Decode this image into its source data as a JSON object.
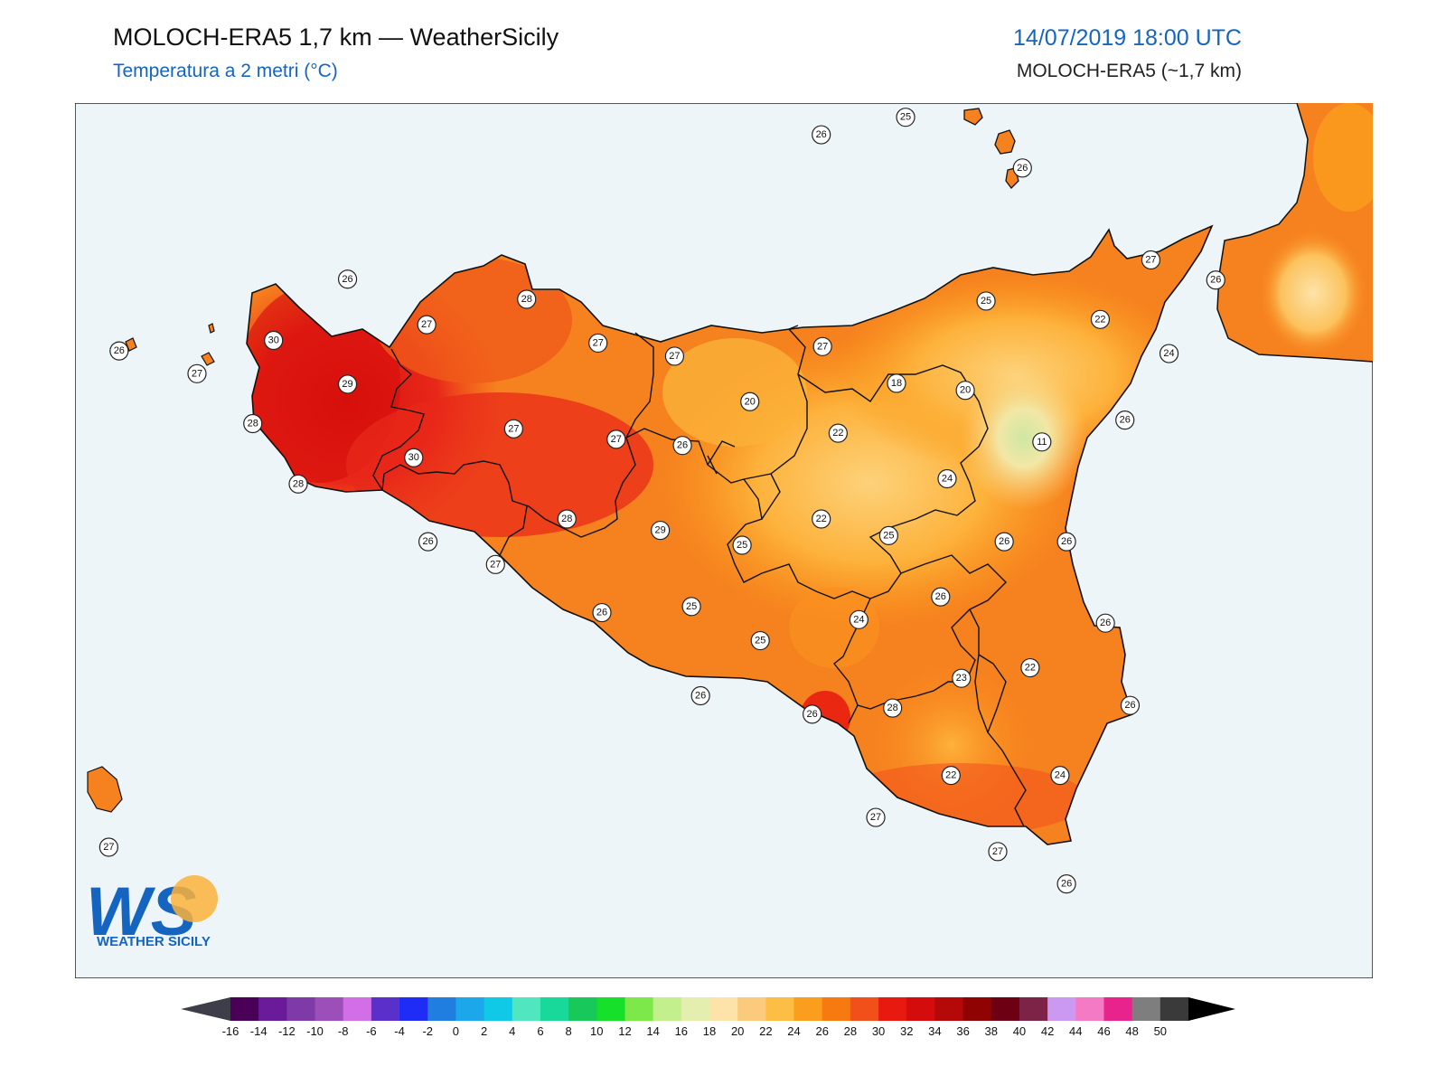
{
  "header": {
    "title": "MOLOCH-ERA5 1,7 km — WeatherSicily",
    "subtitle": "Temperatura a 2 metri (°C)",
    "datetime": "14/07/2019 18:00 UTC",
    "model": "MOLOCH-ERA5 (~1,7 km)"
  },
  "logo": {
    "mark": "WS",
    "text": "WEATHER SICILY"
  },
  "map_labels": [
    {
      "id": "l01",
      "value": "26",
      "lon": 0.575,
      "lat": 0.03
    },
    {
      "id": "l02",
      "value": "25",
      "lon": 0.64,
      "lat": 0.01
    },
    {
      "id": "l03",
      "value": "26",
      "lon": 0.73,
      "lat": 0.068
    },
    {
      "id": "l04",
      "value": "26",
      "lon": 0.21,
      "lat": 0.195
    },
    {
      "id": "l05",
      "value": "28",
      "lon": 0.348,
      "lat": 0.218
    },
    {
      "id": "l06",
      "value": "27",
      "lon": 0.271,
      "lat": 0.247
    },
    {
      "id": "l07",
      "value": "30",
      "lon": 0.153,
      "lat": 0.265
    },
    {
      "id": "l08",
      "value": "26",
      "lon": 0.034,
      "lat": 0.277
    },
    {
      "id": "l09",
      "value": "27",
      "lon": 0.094,
      "lat": 0.303
    },
    {
      "id": "l10",
      "value": "27",
      "lon": 0.403,
      "lat": 0.268
    },
    {
      "id": "l11",
      "value": "27",
      "lon": 0.462,
      "lat": 0.283
    },
    {
      "id": "l12",
      "value": "27",
      "lon": 0.576,
      "lat": 0.272
    },
    {
      "id": "l13",
      "value": "27",
      "lon": 0.829,
      "lat": 0.173
    },
    {
      "id": "l14",
      "value": "26",
      "lon": 0.879,
      "lat": 0.196
    },
    {
      "id": "l15",
      "value": "25",
      "lon": 0.702,
      "lat": 0.22
    },
    {
      "id": "l16",
      "value": "22",
      "lon": 0.79,
      "lat": 0.241
    },
    {
      "id": "l17",
      "value": "24",
      "lon": 0.843,
      "lat": 0.28
    },
    {
      "id": "l18",
      "value": "29",
      "lon": 0.21,
      "lat": 0.315
    },
    {
      "id": "l19",
      "value": "18",
      "lon": 0.633,
      "lat": 0.314
    },
    {
      "id": "l20",
      "value": "20",
      "lon": 0.686,
      "lat": 0.322
    },
    {
      "id": "l21",
      "value": "20",
      "lon": 0.52,
      "lat": 0.335
    },
    {
      "id": "l22",
      "value": "28",
      "lon": 0.137,
      "lat": 0.36
    },
    {
      "id": "l23",
      "value": "27",
      "lon": 0.338,
      "lat": 0.366
    },
    {
      "id": "l24",
      "value": "27",
      "lon": 0.417,
      "lat": 0.378
    },
    {
      "id": "l25",
      "value": "26",
      "lon": 0.468,
      "lat": 0.385
    },
    {
      "id": "l26",
      "value": "22",
      "lon": 0.588,
      "lat": 0.371
    },
    {
      "id": "l27",
      "value": "26",
      "lon": 0.809,
      "lat": 0.356
    },
    {
      "id": "l28",
      "value": "11",
      "lon": 0.745,
      "lat": 0.381
    },
    {
      "id": "l29",
      "value": "30",
      "lon": 0.261,
      "lat": 0.399
    },
    {
      "id": "l30",
      "value": "28",
      "lon": 0.172,
      "lat": 0.429
    },
    {
      "id": "l31",
      "value": "24",
      "lon": 0.672,
      "lat": 0.423
    },
    {
      "id": "l32",
      "value": "28",
      "lon": 0.379,
      "lat": 0.469
    },
    {
      "id": "l33",
      "value": "29",
      "lon": 0.451,
      "lat": 0.482
    },
    {
      "id": "l34",
      "value": "22",
      "lon": 0.575,
      "lat": 0.469
    },
    {
      "id": "l35",
      "value": "25",
      "lon": 0.627,
      "lat": 0.488
    },
    {
      "id": "l36",
      "value": "26",
      "lon": 0.272,
      "lat": 0.495
    },
    {
      "id": "l37",
      "value": "25",
      "lon": 0.514,
      "lat": 0.499
    },
    {
      "id": "l38",
      "value": "26",
      "lon": 0.716,
      "lat": 0.495
    },
    {
      "id": "l39",
      "value": "26",
      "lon": 0.764,
      "lat": 0.495
    },
    {
      "id": "l40",
      "value": "27",
      "lon": 0.324,
      "lat": 0.521
    },
    {
      "id": "l41",
      "value": "26",
      "lon": 0.667,
      "lat": 0.558
    },
    {
      "id": "l42",
      "value": "25",
      "lon": 0.475,
      "lat": 0.569
    },
    {
      "id": "l43",
      "value": "26",
      "lon": 0.406,
      "lat": 0.576
    },
    {
      "id": "l44",
      "value": "24",
      "lon": 0.604,
      "lat": 0.584
    },
    {
      "id": "l45",
      "value": "26",
      "lon": 0.794,
      "lat": 0.588
    },
    {
      "id": "l46",
      "value": "25",
      "lon": 0.528,
      "lat": 0.608
    },
    {
      "id": "l47",
      "value": "22",
      "lon": 0.736,
      "lat": 0.639
    },
    {
      "id": "l48",
      "value": "23",
      "lon": 0.683,
      "lat": 0.651
    },
    {
      "id": "l49",
      "value": "26",
      "lon": 0.482,
      "lat": 0.671
    },
    {
      "id": "l50",
      "value": "28",
      "lon": 0.63,
      "lat": 0.685
    },
    {
      "id": "l51",
      "value": "26",
      "lon": 0.568,
      "lat": 0.692
    },
    {
      "id": "l52",
      "value": "26",
      "lon": 0.813,
      "lat": 0.682
    },
    {
      "id": "l53",
      "value": "22",
      "lon": 0.675,
      "lat": 0.762
    },
    {
      "id": "l54",
      "value": "24",
      "lon": 0.759,
      "lat": 0.762
    },
    {
      "id": "l55",
      "value": "27",
      "lon": 0.617,
      "lat": 0.81
    },
    {
      "id": "l56",
      "value": "27",
      "lon": 0.026,
      "lat": 0.844
    },
    {
      "id": "l57",
      "value": "27",
      "lon": 0.711,
      "lat": 0.849
    },
    {
      "id": "l58",
      "value": "26",
      "lon": 0.764,
      "lat": 0.886
    }
  ],
  "colorbar": {
    "ticks": [
      "-16",
      "-14",
      "-12",
      "-10",
      "-8",
      "-6",
      "-4",
      "-2",
      "0",
      "2",
      "4",
      "6",
      "8",
      "10",
      "12",
      "14",
      "16",
      "18",
      "20",
      "22",
      "24",
      "26",
      "28",
      "30",
      "32",
      "34",
      "36",
      "38",
      "40",
      "42",
      "44",
      "46",
      "48",
      "50"
    ],
    "colors": [
      "#4a0057",
      "#6a1b9a",
      "#7e3aa6",
      "#9c4fb8",
      "#d36fe6",
      "#5b2fc9",
      "#1e2cf5",
      "#1f7ee0",
      "#1ca7ea",
      "#10c9e6",
      "#4fe6c0",
      "#18d89a",
      "#18c85a",
      "#16e02a",
      "#7de84a",
      "#c3ef8c",
      "#e4eeae",
      "#fde3a9",
      "#fcca7c",
      "#fdbe45",
      "#fb9d1d",
      "#f77a11",
      "#f2501b",
      "#e8190f",
      "#d40c0c",
      "#b50808",
      "#8f0303",
      "#6e0014",
      "#7e2348",
      "#cc99f2",
      "#f57ac6",
      "#e8238c",
      "#7e7e7e",
      "#3a3a3a"
    ],
    "under_color": "#3e3e4a",
    "over_color": "#000000"
  },
  "colors": {
    "sea": "#eef5f9",
    "land_base": "#f6821f",
    "west_hot": "#e2241a",
    "east_warm": "#fcb53a",
    "etna_cool": "#e8e89c",
    "accent_blue": "#1565c0"
  }
}
